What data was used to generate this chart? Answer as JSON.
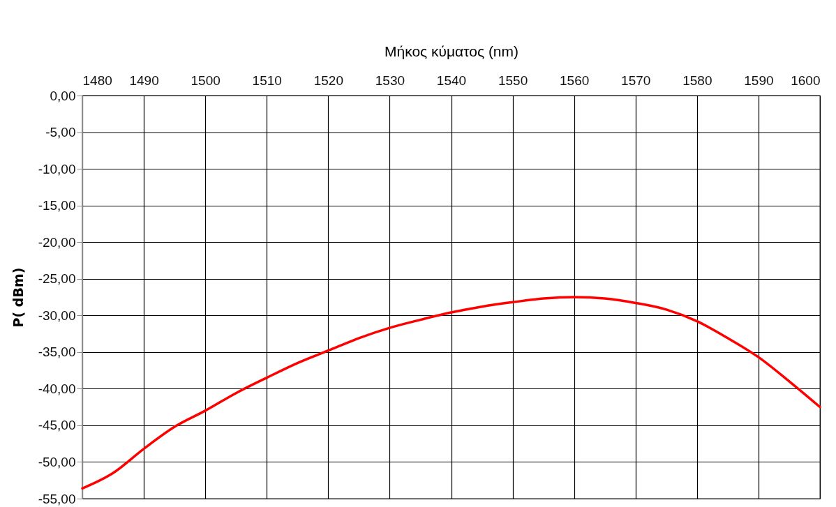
{
  "chart_data": {
    "type": "line",
    "xlabel": "Μήκος κύματος (nm)",
    "ylabel": "P( dBm)",
    "x": [
      1480,
      1485,
      1490,
      1495,
      1500,
      1505,
      1510,
      1515,
      1520,
      1525,
      1530,
      1535,
      1540,
      1545,
      1550,
      1555,
      1560,
      1565,
      1570,
      1575,
      1580,
      1585,
      1590,
      1595,
      1600
    ],
    "series": [
      {
        "color": "#ff0000",
        "values": [
          -53.6,
          -51.5,
          -48.2,
          -45.2,
          -43.0,
          -40.6,
          -38.5,
          -36.5,
          -34.8,
          -33.1,
          -31.7,
          -30.6,
          -29.6,
          -28.8,
          -28.2,
          -27.7,
          -27.5,
          -27.7,
          -28.3,
          -29.2,
          -30.8,
          -33.1,
          -35.7,
          -39.0,
          -42.5
        ]
      }
    ],
    "xlim": [
      1480,
      1600
    ],
    "xticks": [
      1480,
      1490,
      1500,
      1510,
      1520,
      1530,
      1540,
      1550,
      1560,
      1570,
      1580,
      1590,
      1600
    ],
    "ylim": [
      -55,
      0
    ],
    "yticks": [
      {
        "value": 0,
        "label": "0,00"
      },
      {
        "value": -5,
        "label": "-5,00"
      },
      {
        "value": -10,
        "label": "-10,00"
      },
      {
        "value": -15,
        "label": "-15,00"
      },
      {
        "value": -20,
        "label": "-20,00"
      },
      {
        "value": -25,
        "label": "-25,00"
      },
      {
        "value": -30,
        "label": "-30,00"
      },
      {
        "value": -35,
        "label": "-35,00"
      },
      {
        "value": -40,
        "label": "-40,00"
      },
      {
        "value": -45,
        "label": "-45,00"
      },
      {
        "value": -50,
        "label": "-50,00"
      },
      {
        "value": -55,
        "label": "-55,00"
      }
    ],
    "grid": true,
    "marker": "none",
    "line_style": "solid"
  }
}
